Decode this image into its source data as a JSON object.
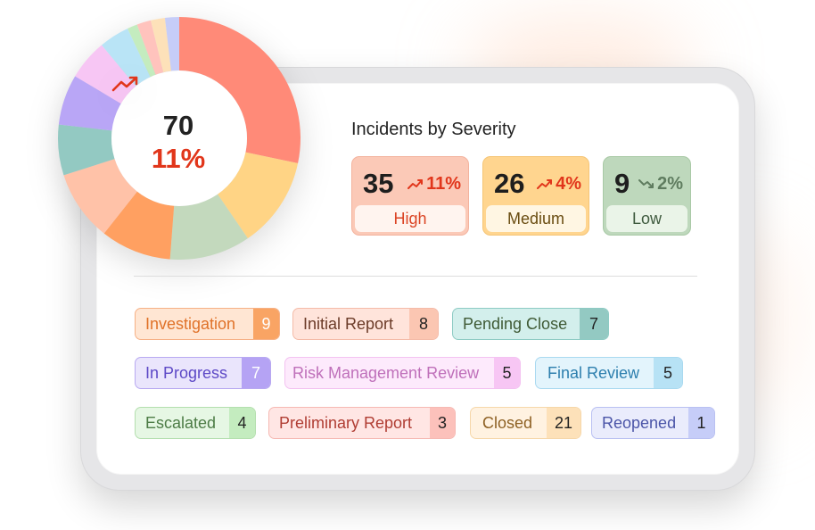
{
  "colors": {
    "trend_up": "#e1361b",
    "trend_down": "#5f7c5f"
  },
  "donut": {
    "total": "70",
    "change": "11%",
    "change_icon": "trend-up-icon",
    "segment_colors": [
      "#ff8a78",
      "#ffd485",
      "#c3d9bd",
      "#ffa061",
      "#ffc2a8",
      "#93c9c2",
      "#b9a6f6",
      "#f7c6f4",
      "#b9e4f6",
      "#c4ecbf",
      "#ffc3bd",
      "#fde1b9",
      "#c6cdf8"
    ]
  },
  "severity": {
    "title": "Incidents by Severity",
    "cards": [
      {
        "value": "35",
        "change": "11%",
        "trend": "up",
        "label": "High"
      },
      {
        "value": "26",
        "change": "4%",
        "trend": "up",
        "label": "Medium"
      },
      {
        "value": "9",
        "change": "2%",
        "trend": "down",
        "label": "Low"
      }
    ]
  },
  "statuses": [
    {
      "label": "Investigation",
      "count": "9",
      "bg": "#ffe6d3",
      "border": "#f6b186",
      "text": "#e07229",
      "count_bg": "#f9a464",
      "count_color": "#ffffff"
    },
    {
      "label": "Initial Report",
      "count": "8",
      "bg": "#ffe4db",
      "border": "#f4bba8",
      "text": "#6b3b28",
      "count_bg": "#fbc6b2",
      "count_color": "#222222"
    },
    {
      "label": "Pending Close",
      "count": "7",
      "bg": "#d3efec",
      "border": "#8ecbc4",
      "text": "#3f5a35",
      "count_bg": "#93c9c2",
      "count_color": "#222222"
    },
    {
      "label": "In Progress",
      "count": "7",
      "bg": "#eae5fc",
      "border": "#b8a9f1",
      "text": "#5d49c6",
      "count_bg": "#b5a3f4",
      "count_color": "#ffffff"
    },
    {
      "label": "Risk Management Review",
      "count": "5",
      "bg": "#fdeafc",
      "border": "#f3c2f1",
      "text": "#bf70ba",
      "count_bg": "#f7c6f4",
      "count_color": "#222222"
    },
    {
      "label": "Final Review",
      "count": "5",
      "bg": "#e3f4fc",
      "border": "#a9d9f0",
      "text": "#2d7fae",
      "count_bg": "#b7e2f5",
      "count_color": "#222222"
    },
    {
      "label": "Escalated",
      "count": "4",
      "bg": "#e6f7e4",
      "border": "#b4dfae",
      "text": "#4d7c46",
      "count_bg": "#c4ecbf",
      "count_color": "#222222"
    },
    {
      "label": "Preliminary Report",
      "count": "3",
      "bg": "#ffe6e4",
      "border": "#f6b9b3",
      "text": "#b03d33",
      "count_bg": "#fcc1bb",
      "count_color": "#222222"
    },
    {
      "label": "Closed",
      "count": "21",
      "bg": "#fff2e1",
      "border": "#f6d7a9",
      "text": "#8e6124",
      "count_bg": "#fde1b9",
      "count_color": "#222222"
    },
    {
      "label": "Reopened",
      "count": "1",
      "bg": "#eaecfc",
      "border": "#b9c0f2",
      "text": "#4b55a8",
      "count_bg": "#c6cdf8",
      "count_color": "#222222"
    }
  ]
}
